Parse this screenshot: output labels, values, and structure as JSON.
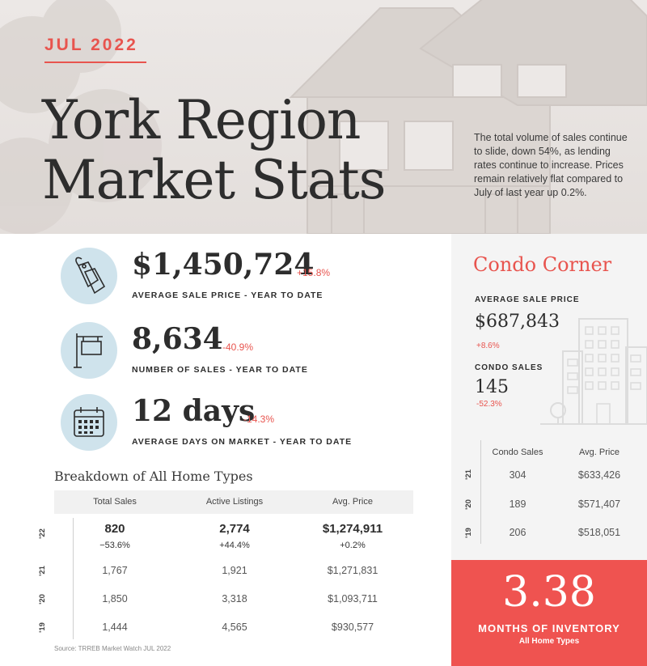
{
  "header": {
    "date": "JUL 2022",
    "title_line1": "York Region",
    "title_line2": "Market Stats",
    "blurb": "The total volume of sales continue to slide, down 54%, as lending rates continue to increase. Prices remain relatively flat compared to July of last year up 0.2%."
  },
  "stats": [
    {
      "value": "$1,450,724",
      "change": "+15.8%",
      "label": "AVERAGE SALE PRICE - YEAR TO DATE",
      "icon": "price-tag-icon"
    },
    {
      "value": "8,634",
      "change": "-40.9%",
      "label": "NUMBER OF SALES - YEAR TO DATE",
      "icon": "sale-sign-icon"
    },
    {
      "value": "12 days",
      "change": "-14.3%",
      "label": "AVERAGE DAYS ON MARKET - YEAR TO DATE",
      "icon": "calendar-icon"
    }
  ],
  "breakdown": {
    "title": "Breakdown of All Home Types",
    "columns": [
      "Total Sales",
      "Active Listings",
      "Avg. Price"
    ],
    "rows": [
      {
        "year": "'22",
        "cells": [
          "820",
          "2,774",
          "$1,274,911"
        ],
        "changes": [
          "−53.6%",
          "+44.4%",
          "+0.2%"
        ]
      },
      {
        "year": "'21",
        "cells": [
          "1,767",
          "1,921",
          "$1,271,831"
        ]
      },
      {
        "year": "'20",
        "cells": [
          "1,850",
          "3,318",
          "$1,093,711"
        ]
      },
      {
        "year": "'19",
        "cells": [
          "1,444",
          "4,565",
          "$930,577"
        ]
      }
    ],
    "source": "Source: TRREB Market Watch JUL 2022"
  },
  "condo": {
    "title": "Condo Corner",
    "avg_label": "AVERAGE SALE PRICE",
    "avg_value": "$687,843",
    "avg_change": "+8.6%",
    "sales_label": "CONDO SALES",
    "sales_value": "145",
    "sales_change": "-52.3%",
    "columns": [
      "Condo Sales",
      "Avg. Price"
    ],
    "rows": [
      {
        "year": "'21",
        "cells": [
          "304",
          "$633,426"
        ]
      },
      {
        "year": "'20",
        "cells": [
          "189",
          "$571,407"
        ]
      },
      {
        "year": "'19",
        "cells": [
          "206",
          "$518,051"
        ]
      }
    ]
  },
  "inventory": {
    "value": "3.38",
    "label": "MONTHS OF INVENTORY",
    "sub": "All Home Types"
  },
  "colors": {
    "accent": "#e8544e",
    "icon_bg": "#cfe3ec",
    "inventory_bg": "#ef5350"
  }
}
